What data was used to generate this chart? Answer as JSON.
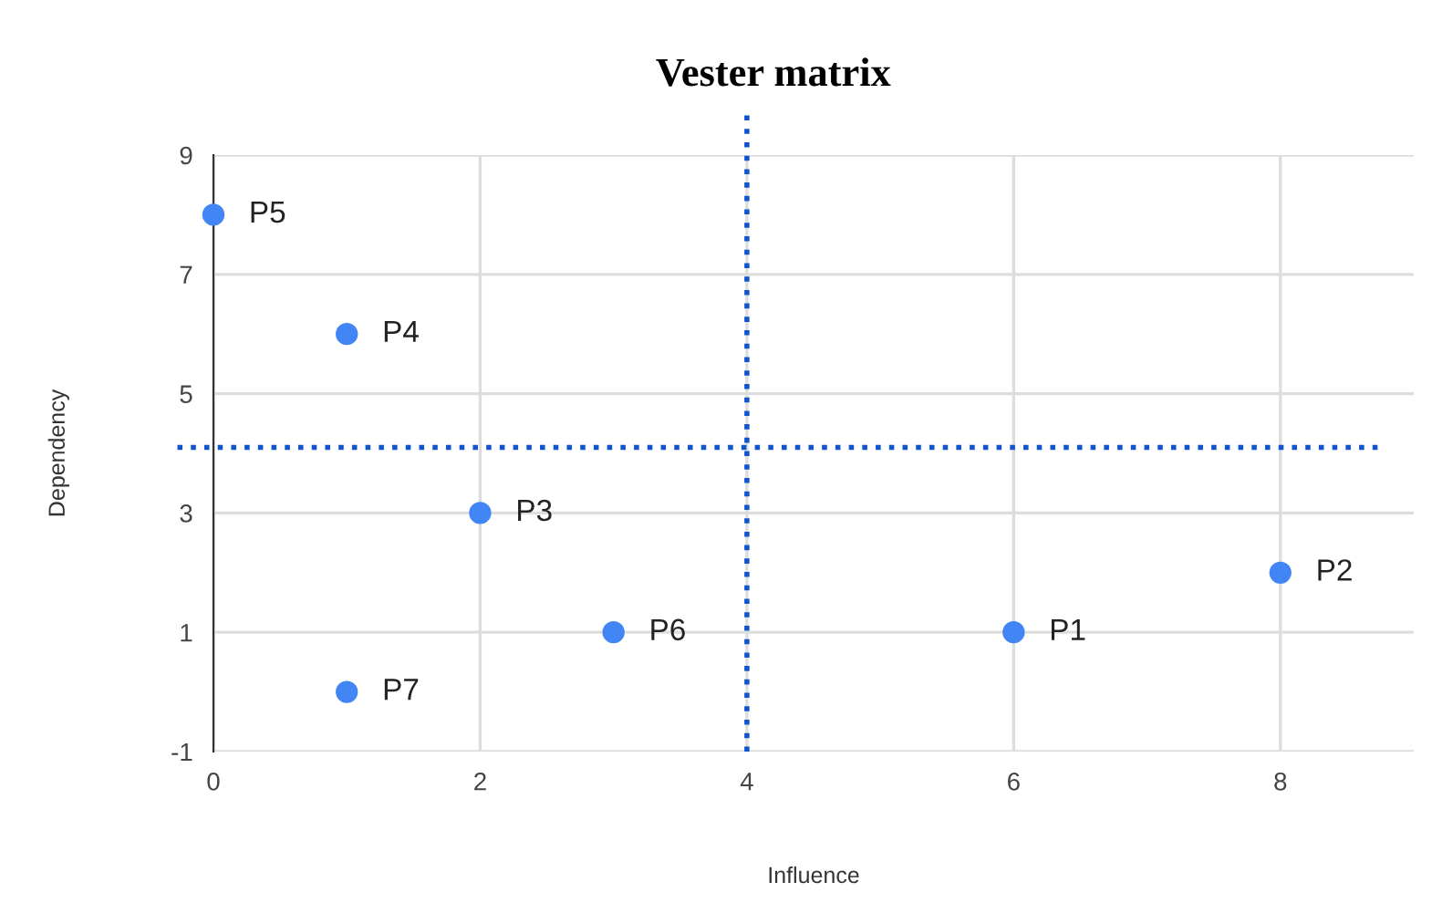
{
  "chart_data": {
    "type": "scatter",
    "title": "Vester matrix",
    "xlabel": "Influence",
    "ylabel": "Dependency",
    "x": [
      6,
      8,
      2,
      1,
      0,
      3,
      1
    ],
    "series": [
      {
        "color": "#4285f4",
        "values": [
          1,
          2,
          3,
          6,
          8,
          1,
          0
        ]
      }
    ],
    "annotations": [
      {
        "text": "P1",
        "x": 6,
        "y": 1
      },
      {
        "text": "P2",
        "x": 8,
        "y": 2
      },
      {
        "text": "P3",
        "x": 2,
        "y": 3
      },
      {
        "text": "P4",
        "x": 1,
        "y": 6
      },
      {
        "text": "P5",
        "x": 0,
        "y": 8
      },
      {
        "text": "P6",
        "x": 3,
        "y": 1
      },
      {
        "text": "P7",
        "x": 1,
        "y": 0
      }
    ],
    "ref_lines": [
      {
        "axis": "x",
        "value": 4,
        "color": "#1155cc",
        "line_style": "dotted"
      },
      {
        "axis": "y",
        "value": 4.1,
        "color": "#1155cc",
        "line_style": "dotted"
      }
    ],
    "xlim": [
      0,
      9
    ],
    "ylim": [
      -1,
      9
    ],
    "xticks": [
      0,
      2,
      4,
      6,
      8
    ],
    "yticks": [
      -1,
      1,
      3,
      5,
      7,
      9
    ],
    "grid": true,
    "marker": "circle"
  }
}
